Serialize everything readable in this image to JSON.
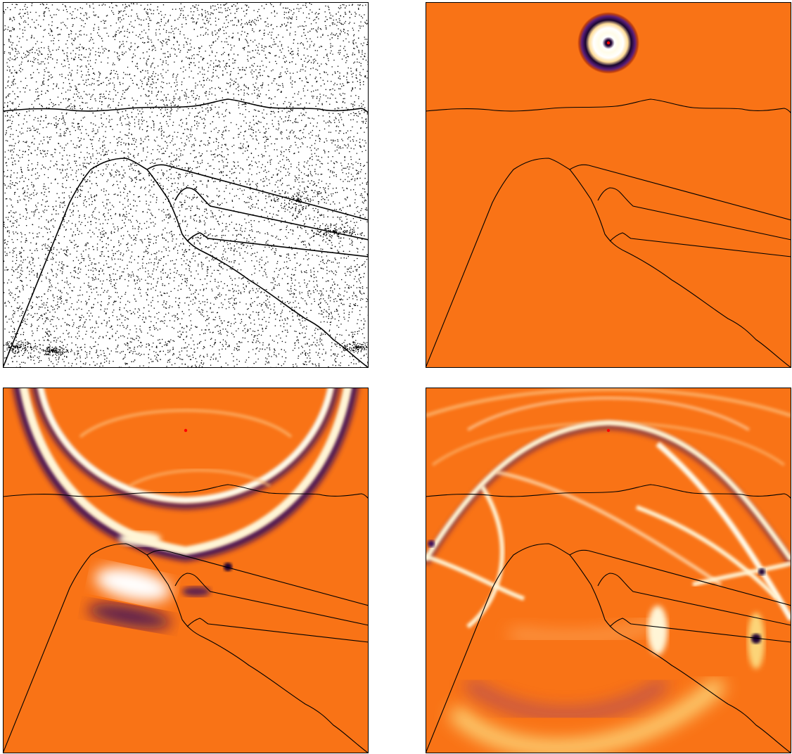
{
  "figure": {
    "panels": [
      {
        "id": "mesh",
        "kind": "point-mesh"
      },
      {
        "id": "snap-1",
        "kind": "wavefield",
        "source_visible": true
      },
      {
        "id": "snap-2",
        "kind": "wavefield",
        "source_visible": true
      },
      {
        "id": "snap-3",
        "kind": "wavefield",
        "source_visible": true
      }
    ],
    "colors": {
      "background_field": "#f97316",
      "wave_light": "#fff5d6",
      "wave_dark": "#2a0b3d",
      "wave_mid": "#7a2e8c",
      "interface_line": "#000000",
      "mesh_dots": "#000000",
      "source_marker": "#ff0000"
    },
    "colormap": "inferno-like"
  }
}
